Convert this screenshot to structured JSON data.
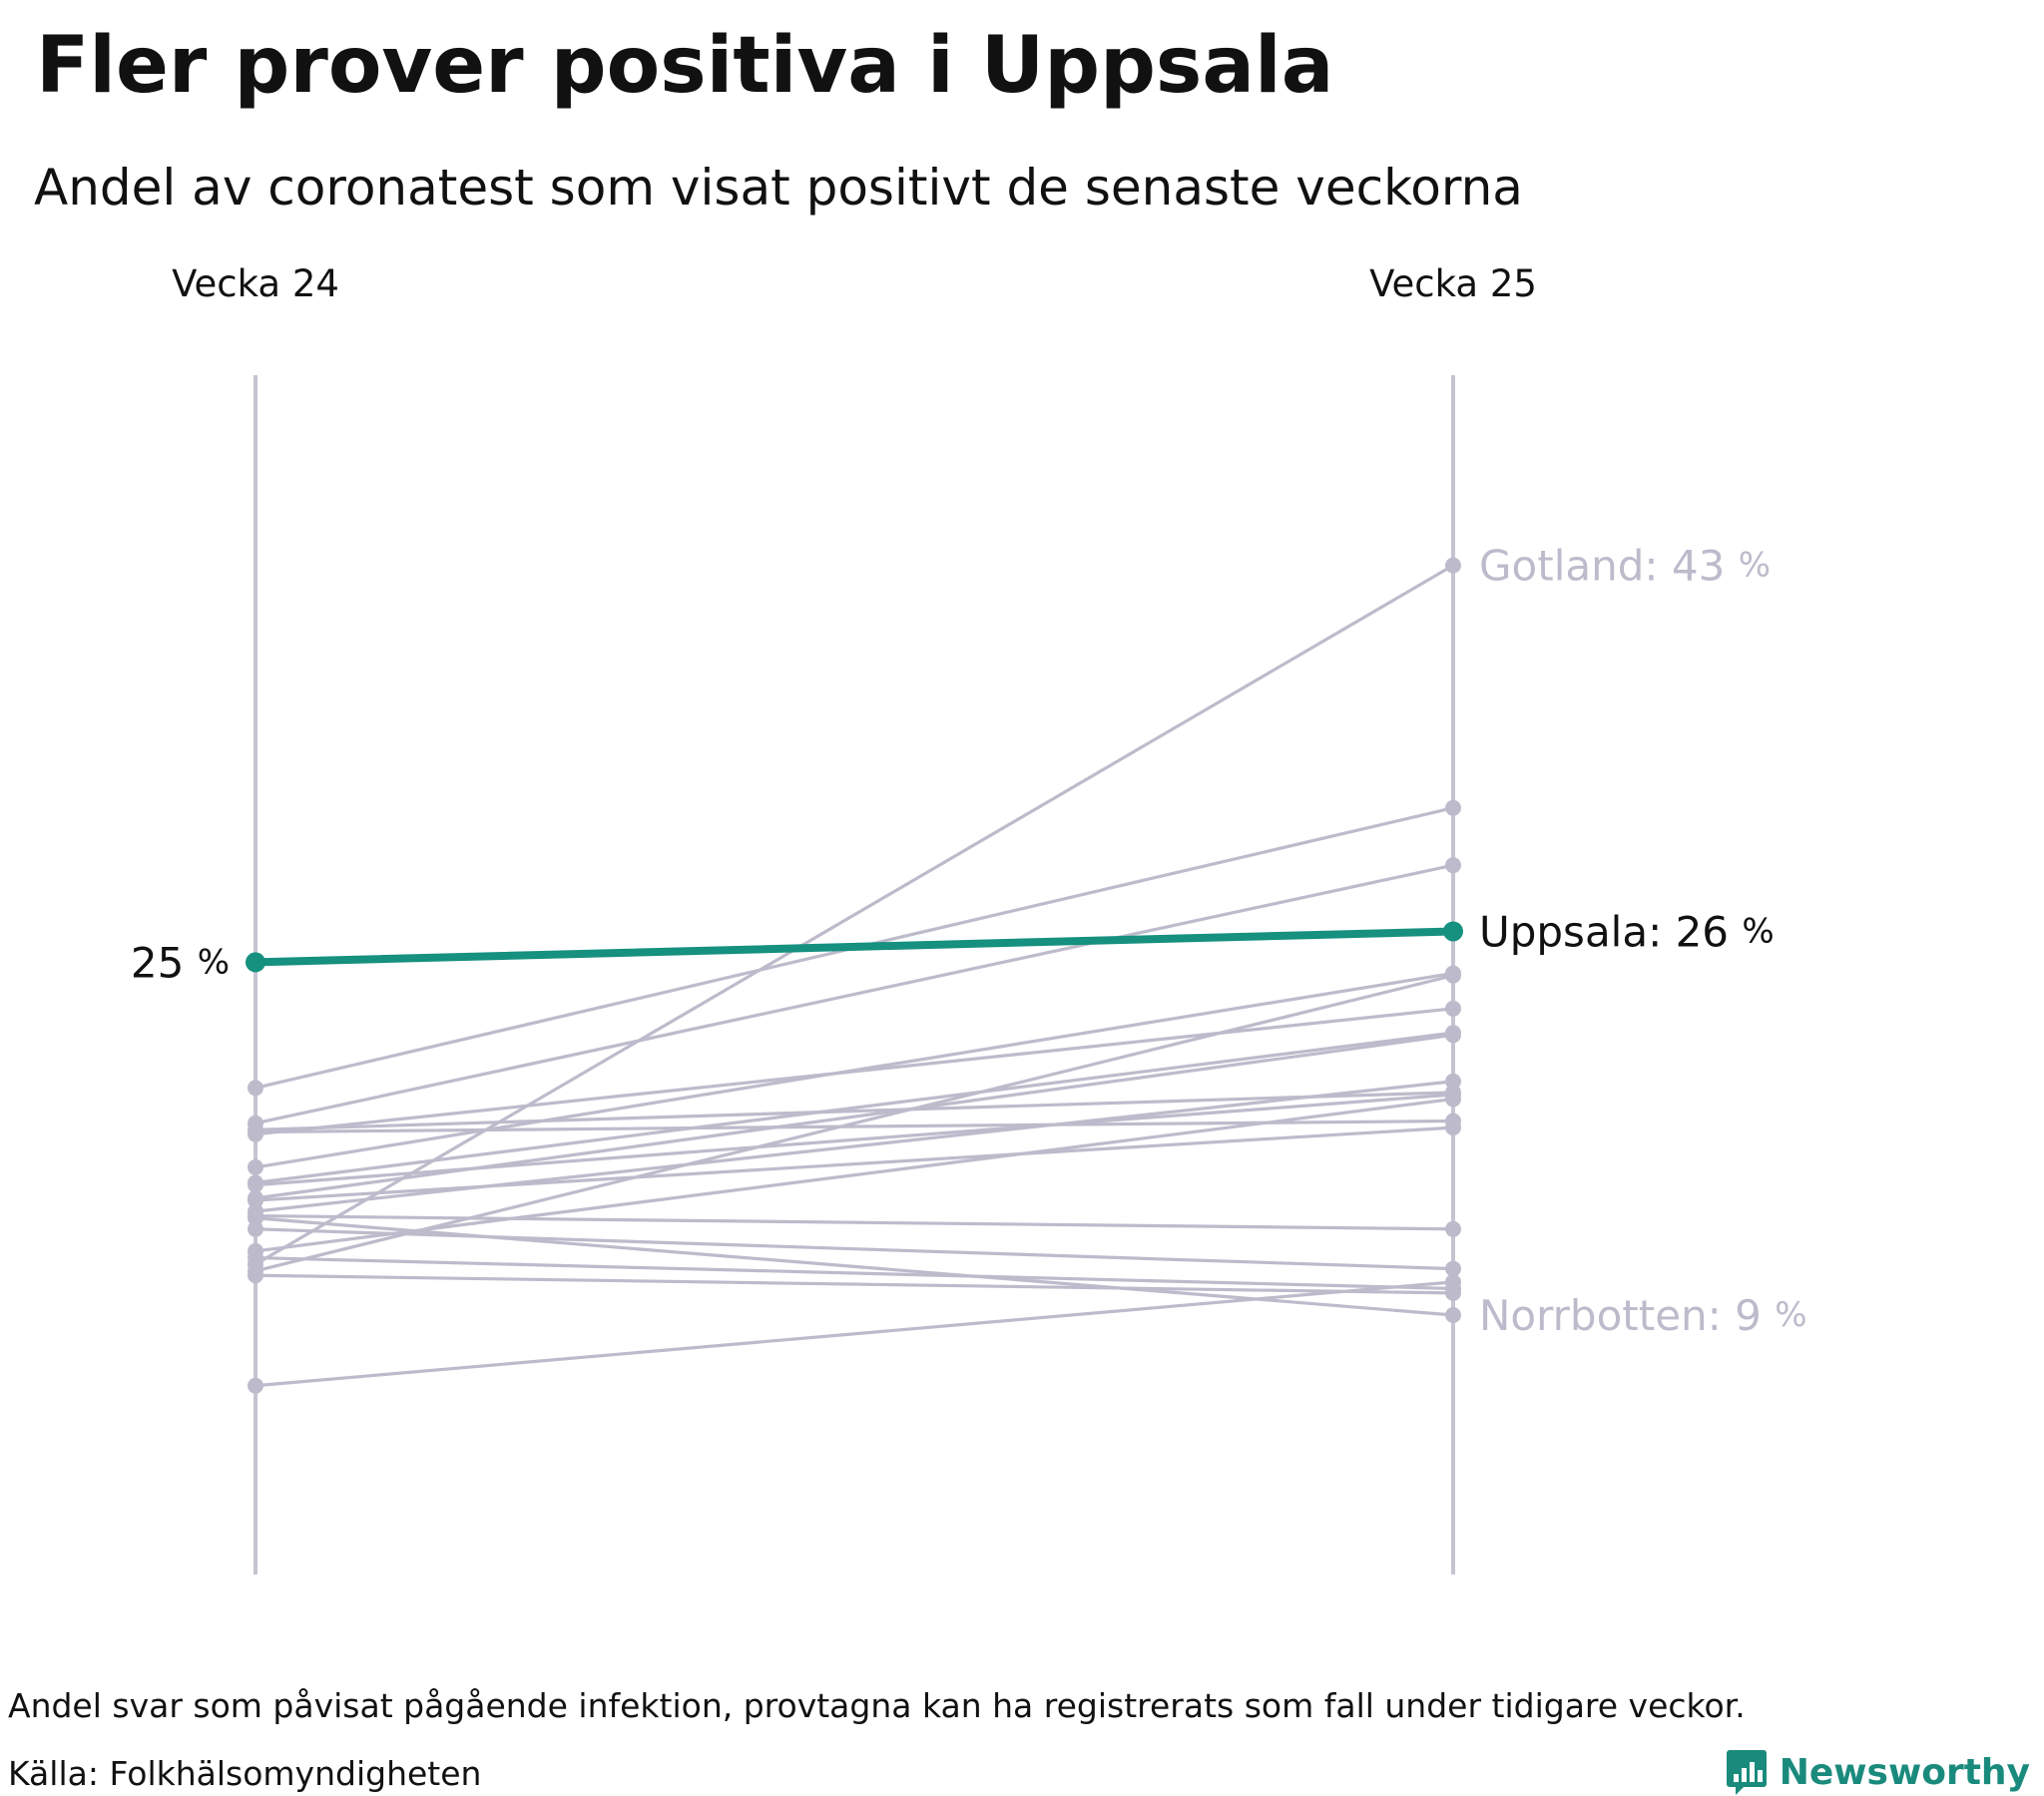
{
  "header": {
    "title": "Fler prover positiva i Uppsala",
    "subtitle": "Andel av coronatest som visat positivt de senaste veckorna"
  },
  "footer": {
    "note": "Andel svar som påvisat pågående infektion, provtagna kan ha registrerats som fall under tidigare veckor.",
    "source": "Källa: Folkhälsomyndigheten",
    "brand": "Newsworthy"
  },
  "colors": {
    "highlight": "#16907f",
    "muted": "#bdbbcb",
    "axis": "#c6c4d0",
    "brand": "#1a8a7d"
  },
  "icons": {
    "brand": "bar-chart-icon"
  },
  "chart_data": {
    "type": "slope",
    "columns": [
      "Vecka 24",
      "Vecka 25"
    ],
    "unit": "%",
    "highlight": "Uppsala",
    "series": [
      {
        "name": "Uppsala",
        "values": [
          25.0,
          26.4
        ]
      },
      {
        "name": "Gotland",
        "values": [
          11.3,
          43.0
        ]
      },
      {
        "name": "Norrbotten",
        "values": [
          13.4,
          9.0
        ]
      },
      {
        "name": "",
        "values": [
          19.3,
          32.0
        ]
      },
      {
        "name": "",
        "values": [
          17.7,
          29.4
        ]
      },
      {
        "name": "",
        "values": [
          17.2,
          22.9
        ]
      },
      {
        "name": "",
        "values": [
          17.4,
          19.1
        ]
      },
      {
        "name": "",
        "values": [
          17.3,
          17.8
        ]
      },
      {
        "name": "",
        "values": [
          15.7,
          24.5
        ]
      },
      {
        "name": "",
        "values": [
          15.0,
          21.8
        ]
      },
      {
        "name": "",
        "values": [
          14.9,
          19.0
        ]
      },
      {
        "name": "",
        "values": [
          14.3,
          21.7
        ]
      },
      {
        "name": "",
        "values": [
          13.7,
          19.6
        ]
      },
      {
        "name": "",
        "values": [
          14.2,
          17.5
        ]
      },
      {
        "name": "",
        "values": [
          13.5,
          12.9
        ]
      },
      {
        "name": "",
        "values": [
          12.9,
          11.1
        ]
      },
      {
        "name": "",
        "values": [
          11.9,
          18.8
        ]
      },
      {
        "name": "",
        "values": [
          11.6,
          10.2
        ]
      },
      {
        "name": "",
        "values": [
          10.8,
          10.0
        ]
      },
      {
        "name": "",
        "values": [
          11.0,
          24.4
        ]
      },
      {
        "name": "",
        "values": [
          5.8,
          10.5
        ]
      }
    ],
    "labels": {
      "left": {
        "series": "Uppsala",
        "text": "25",
        "unit": "%"
      },
      "right": [
        {
          "series": "Gotland",
          "text": "Gotland: 43",
          "unit": "%"
        },
        {
          "series": "Uppsala",
          "text": "Uppsala: 26",
          "unit": "%"
        },
        {
          "series": "Norrbotten",
          "text": "Norrbotten: 9",
          "unit": "%"
        }
      ]
    }
  }
}
